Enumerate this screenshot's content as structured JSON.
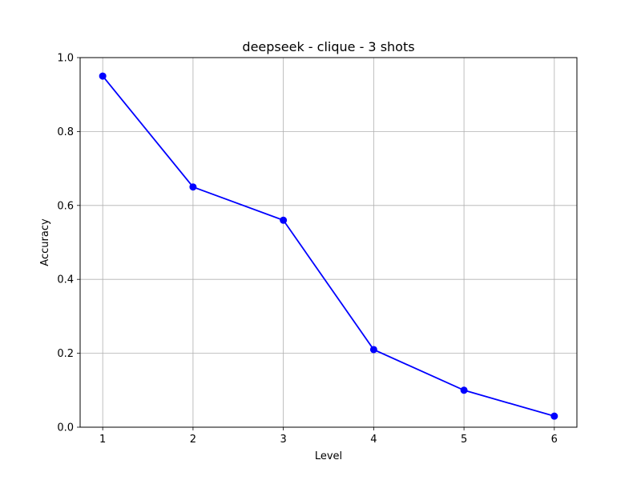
{
  "chart_data": {
    "type": "line",
    "title": "deepseek - clique - 3 shots",
    "xlabel": "Level",
    "ylabel": "Accuracy",
    "x": [
      1,
      2,
      3,
      4,
      5,
      6
    ],
    "series": [
      {
        "name": "Accuracy",
        "values": [
          0.95,
          0.65,
          0.56,
          0.21,
          0.1,
          0.03
        ],
        "color": "#0000ff",
        "marker": "circle"
      }
    ],
    "xticks": [
      "1",
      "2",
      "3",
      "4",
      "5",
      "6"
    ],
    "yticks": [
      "0.0",
      "0.2",
      "0.4",
      "0.6",
      "0.8",
      "1.0"
    ],
    "xlim": [
      0.75,
      6.25
    ],
    "ylim": [
      0.0,
      1.0
    ],
    "grid": true,
    "colors": {
      "grid": "#b0b0b0",
      "axes": "#000000",
      "line": "#0000ff"
    }
  }
}
